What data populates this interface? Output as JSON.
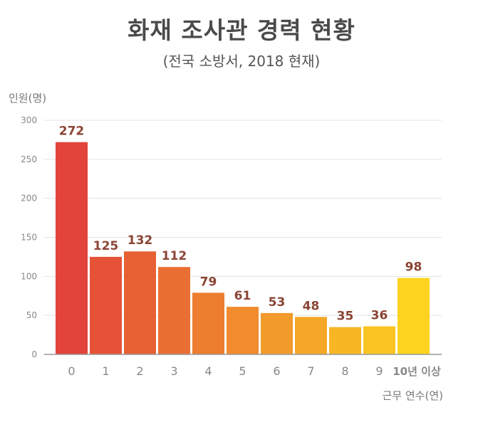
{
  "chart_data": {
    "type": "bar",
    "title": "화재 조사관 경력 현황",
    "subtitle": "(전국 소방서, 2018 현재)",
    "ylabel": "인원(명)",
    "xlabel": "근무 연수(연)",
    "categories": [
      "0",
      "1",
      "2",
      "3",
      "4",
      "5",
      "6",
      "7",
      "8",
      "9",
      "10년 이상"
    ],
    "values": [
      272,
      125,
      132,
      112,
      79,
      61,
      53,
      48,
      35,
      36,
      98
    ],
    "ylim": [
      0,
      300
    ],
    "yticks": [
      0,
      50,
      100,
      150,
      200,
      250,
      300
    ],
    "grid": true,
    "legend": "none",
    "colors": {
      "bar_start": "#e2443a",
      "bar_end": "#fdd31f",
      "label": "#8b4434",
      "grid": "#e3e3e3",
      "axis": "#999999"
    }
  }
}
